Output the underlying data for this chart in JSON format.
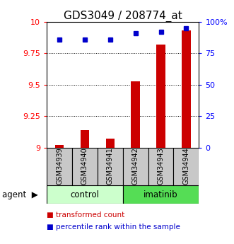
{
  "title": "GDS3049 / 208774_at",
  "samples": [
    "GSM34939",
    "GSM34940",
    "GSM34941",
    "GSM34942",
    "GSM34943",
    "GSM34944"
  ],
  "red_values": [
    9.02,
    9.14,
    9.07,
    9.53,
    9.82,
    9.93
  ],
  "blue_values": [
    86,
    86,
    86,
    91,
    92,
    95
  ],
  "ylim_left": [
    9.0,
    10.0
  ],
  "ylim_right": [
    0,
    100
  ],
  "yticks_left": [
    9.0,
    9.25,
    9.5,
    9.75,
    10.0
  ],
  "ytick_labels_left": [
    "9",
    "9.25",
    "9.5",
    "9.75",
    "10"
  ],
  "yticks_right": [
    0,
    25,
    50,
    75,
    100
  ],
  "ytick_labels_right": [
    "0",
    "25",
    "50",
    "75",
    "100%"
  ],
  "groups": [
    {
      "label": "control",
      "start": 0,
      "end": 3,
      "color": "#ccffcc"
    },
    {
      "label": "imatinib",
      "start": 3,
      "end": 6,
      "color": "#55dd55"
    }
  ],
  "bar_color": "#cc0000",
  "dot_color": "#0000cc",
  "bar_width": 0.35,
  "agent_label": "agent",
  "legend_red": "transformed count",
  "legend_blue": "percentile rank within the sample",
  "sample_box_color": "#c8c8c8",
  "tick_fontsize": 8,
  "title_fontsize": 11
}
